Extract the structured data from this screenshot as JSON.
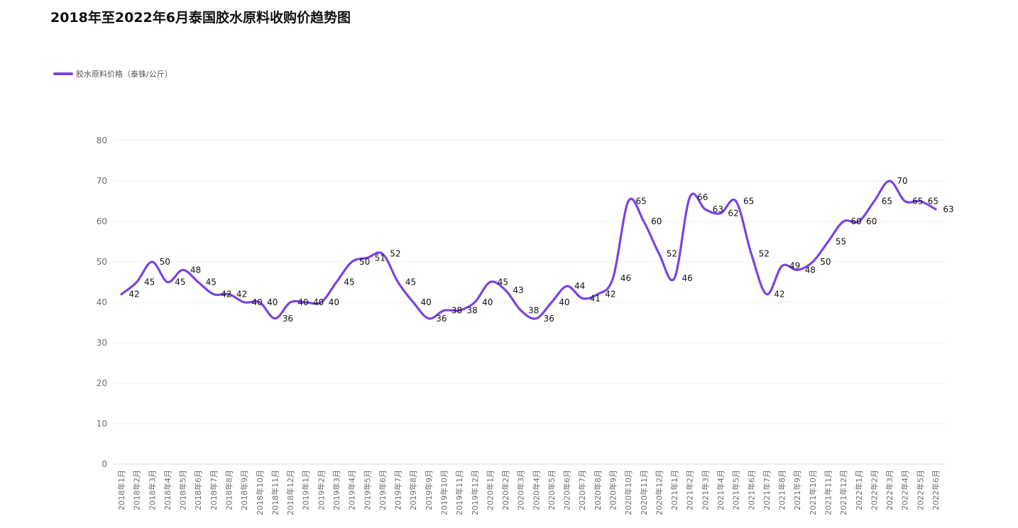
{
  "chart_data": {
    "type": "line",
    "title": "2018年至2022年6月泰国胶水原料收购价趋势图",
    "categories": [
      "2018年1月",
      "2018年2月",
      "2018年3月",
      "2018年4月",
      "2018年5月",
      "2018年6月",
      "2018年7月",
      "2018年8月",
      "2018年9月",
      "2018年10月",
      "2018年11月",
      "2018年12月",
      "2019年1月",
      "2019年2月",
      "2019年3月",
      "2019年4月",
      "2019年5月",
      "2019年6月",
      "2019年7月",
      "2019年8月",
      "2019年9月",
      "2019年10月",
      "2019年11月",
      "2019年12月",
      "2020年1月",
      "2020年2月",
      "2020年3月",
      "2020年4月",
      "2020年5月",
      "2020年6月",
      "2020年7月",
      "2020年8月",
      "2020年9月",
      "2020年10月",
      "2020年11月",
      "2020年12月",
      "2021年1月",
      "2021年2月",
      "2021年3月",
      "2021年4月",
      "2021年5月",
      "2021年6月",
      "2021年7月",
      "2021年8月",
      "2021年9月",
      "2021年10月",
      "2021年11月",
      "2021年12月",
      "2022年1月",
      "2022年2月",
      "2022年3月",
      "2022年4月",
      "2022年5月",
      "2022年6月"
    ],
    "series": [
      {
        "name": "胶水原料价格（泰铢/公斤）",
        "color": "#7b44e0",
        "values": [
          42,
          45,
          50,
          45,
          48,
          45,
          42,
          42,
          40,
          40,
          36,
          40,
          40,
          40,
          45,
          50,
          51,
          52,
          45,
          40,
          36,
          38,
          38,
          40,
          45,
          43,
          38,
          36,
          40,
          44,
          41,
          42,
          46,
          65,
          60,
          52,
          46,
          66,
          63,
          62,
          65,
          52,
          42,
          49,
          48,
          50,
          55,
          60,
          60,
          65,
          70,
          65,
          65,
          63
        ]
      }
    ],
    "ylim": [
      0,
      80
    ],
    "yticks": [
      0,
      10,
      20,
      30,
      40,
      50,
      60,
      70,
      80
    ],
    "grid": true,
    "legend_position": "top-left"
  }
}
